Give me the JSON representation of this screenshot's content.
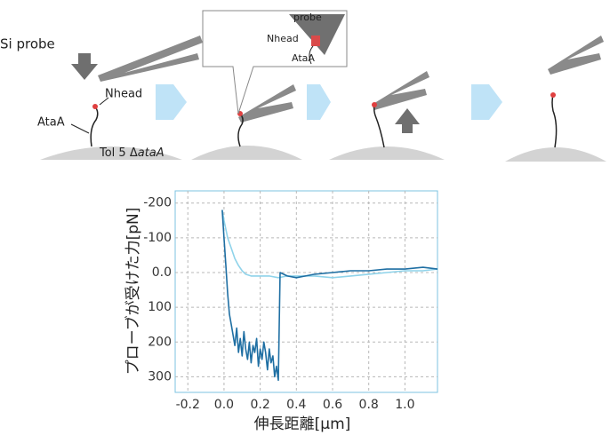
{
  "diagram": {
    "probe_label": "Si probe",
    "ataa_label": "AtaA",
    "nhead_label": "Nhead",
    "strain_prefix": "Tol 5 Δ",
    "strain_gene": "ataA",
    "callout": {
      "probe": "probe",
      "nhead": "Nhead",
      "ataa": "AtaA"
    }
  },
  "chart_data": {
    "type": "line",
    "x_label": "伸長距離[μm]",
    "y_label": "プローブが受けた力[pN]",
    "xlim": [
      -0.27,
      1.18
    ],
    "xticks": [
      -0.2,
      {
        "value": 0,
        "label": "0.0"
      },
      0.2,
      0.4,
      0.6,
      0.8,
      {
        "value": 1,
        "label": "1.0"
      }
    ],
    "ylim": [
      -235,
      345
    ],
    "y_inverted": true,
    "yticks": [
      -200,
      -100,
      {
        "value": 0,
        "label": "0.0"
      },
      100,
      200,
      300
    ],
    "grid": true,
    "series": [
      {
        "color": "#8fd3ea",
        "x": [
          -0.01,
          0.0,
          0.02,
          0.04,
          0.06,
          0.08,
          0.1,
          0.12,
          0.15,
          0.2,
          0.25,
          0.3,
          0.35,
          0.4,
          0.5,
          0.6,
          0.7,
          0.8,
          0.9,
          1.0,
          1.1,
          1.18
        ],
        "values": [
          -180,
          -150,
          -100,
          -70,
          -40,
          -20,
          -5,
          5,
          10,
          10,
          10,
          15,
          10,
          10,
          10,
          15,
          10,
          5,
          0,
          -5,
          -5,
          -10
        ]
      },
      {
        "color": "#1f6fa3",
        "x": [
          -0.01,
          0.0,
          0.01,
          0.02,
          0.03,
          0.04,
          0.05,
          0.06,
          0.07,
          0.08,
          0.09,
          0.1,
          0.11,
          0.12,
          0.13,
          0.14,
          0.15,
          0.16,
          0.17,
          0.18,
          0.19,
          0.2,
          0.21,
          0.22,
          0.23,
          0.24,
          0.25,
          0.26,
          0.27,
          0.28,
          0.29,
          0.3,
          0.31,
          0.35,
          0.4,
          0.45,
          0.5,
          0.6,
          0.7,
          0.8,
          0.9,
          1.0,
          1.1,
          1.18
        ],
        "values": [
          -180,
          -100,
          -20,
          60,
          120,
          150,
          180,
          210,
          160,
          230,
          190,
          240,
          170,
          220,
          250,
          200,
          260,
          210,
          230,
          190,
          270,
          220,
          250,
          200,
          230,
          280,
          220,
          260,
          240,
          300,
          270,
          310,
          0,
          10,
          15,
          10,
          5,
          0,
          -5,
          -5,
          -10,
          -10,
          -15,
          -10
        ]
      }
    ]
  }
}
